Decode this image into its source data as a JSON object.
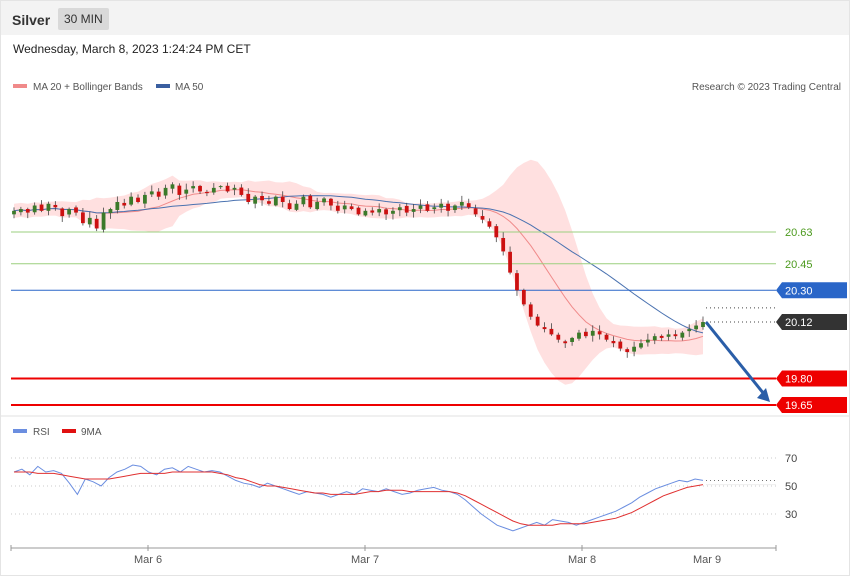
{
  "header": {
    "instrument": "Silver",
    "timeframe": "30 MIN",
    "datetime": "Wednesday, March 8, 2023 1:24:24 PM CET"
  },
  "legend": {
    "ma20_label": "MA 20 + Bollinger Bands",
    "ma50_label": "MA 50",
    "source": "Research © 2023 Trading Central",
    "rsi_label": "RSI",
    "rsi_ma_label": "9MA"
  },
  "colors": {
    "up_candle": "#3b7a2a",
    "down_candle": "#cc1111",
    "ma20": "#f08a8a",
    "bollinger_fill": "#ffd6d6",
    "ma50": "#4a72b0",
    "support": "#ee0000",
    "resistance_minor": "#9bcf7f",
    "pivot": "#2a66c8",
    "last_price_tag": "#333333",
    "rsi": "#6b8ee0",
    "rsi_ma": "#e03030",
    "arrow": "#2a5ea8"
  },
  "chart_data": [
    {
      "type": "candlestick",
      "title": "Silver 30 MIN",
      "x_tick_labels": [
        "Mar 6",
        "Mar 7",
        "Mar 8",
        "Mar 9"
      ],
      "ylim": [
        19.6,
        20.95
      ],
      "levels": [
        {
          "value": 20.63,
          "label": "20.63",
          "kind": "resistance"
        },
        {
          "value": 20.45,
          "label": "20.45",
          "kind": "resistance"
        },
        {
          "value": 20.3,
          "label": "20.30",
          "kind": "pivot"
        },
        {
          "value": 20.12,
          "label": "20.12",
          "kind": "last_price"
        },
        {
          "value": 19.8,
          "label": "19.80",
          "kind": "support"
        },
        {
          "value": 19.65,
          "label": "19.65",
          "kind": "support"
        }
      ],
      "close": [
        20.75,
        20.76,
        20.74,
        20.78,
        20.75,
        20.79,
        20.77,
        20.72,
        20.76,
        20.74,
        20.68,
        20.71,
        20.65,
        20.74,
        20.76,
        20.8,
        20.78,
        20.83,
        20.8,
        20.84,
        20.86,
        20.83,
        20.88,
        20.9,
        20.84,
        20.87,
        20.89,
        20.86,
        20.85,
        20.88,
        20.89,
        20.86,
        20.88,
        20.84,
        20.8,
        20.83,
        20.81,
        20.79,
        20.83,
        20.8,
        20.76,
        20.79,
        20.83,
        20.77,
        20.8,
        20.82,
        20.78,
        20.75,
        20.78,
        20.76,
        20.73,
        20.75,
        20.74,
        20.76,
        20.73,
        20.75,
        20.77,
        20.74,
        20.76,
        20.78,
        20.75,
        20.77,
        20.79,
        20.75,
        20.78,
        20.8,
        20.77,
        20.73,
        20.7,
        20.66,
        20.6,
        20.52,
        20.4,
        20.3,
        20.22,
        20.15,
        20.1,
        20.08,
        20.05,
        20.02,
        20.0,
        20.03,
        20.06,
        20.04,
        20.07,
        20.05,
        20.02,
        20.0,
        19.97,
        19.95,
        19.98,
        20.0,
        20.02,
        20.04,
        20.03,
        20.05,
        20.04,
        20.06,
        20.08,
        20.1,
        20.12
      ],
      "rsi": {
        "ylim": [
          10,
          80
        ],
        "ticks": [
          70,
          50,
          30
        ],
        "values": [
          60,
          62,
          58,
          64,
          60,
          61,
          59,
          52,
          44,
          55,
          53,
          50,
          56,
          60,
          62,
          65,
          64,
          60,
          58,
          62,
          63,
          60,
          64,
          62,
          60,
          61,
          60,
          57,
          54,
          52,
          51,
          49,
          52,
          50,
          48,
          46,
          44,
          46,
          45,
          44,
          42,
          44,
          46,
          44,
          48,
          47,
          46,
          48,
          46,
          44,
          45,
          47,
          48,
          49,
          47,
          46,
          44,
          40,
          35,
          30,
          26,
          22,
          20,
          18,
          20,
          22,
          24,
          22,
          26,
          25,
          24,
          22,
          24,
          26,
          28,
          30,
          32,
          35,
          38,
          42,
          45,
          48,
          50,
          52,
          54,
          53,
          55,
          54
        ],
        "ma_values": [
          60,
          60,
          60,
          59,
          59,
          59,
          58,
          57,
          56,
          55,
          55,
          55,
          55,
          56,
          57,
          58,
          59,
          59,
          59,
          59,
          60,
          60,
          60,
          60,
          60,
          60,
          59,
          58,
          56,
          55,
          53,
          51,
          50,
          50,
          49,
          48,
          47,
          46,
          45,
          45,
          44,
          44,
          44,
          44,
          45,
          46,
          46,
          47,
          47,
          47,
          46,
          46,
          46,
          46,
          46,
          46,
          45,
          43,
          40,
          37,
          34,
          31,
          28,
          25,
          23,
          22,
          22,
          22,
          22,
          23,
          23,
          23,
          23,
          24,
          25,
          26,
          27,
          29,
          31,
          34,
          37,
          40,
          43,
          45,
          47,
          49,
          50,
          51
        ]
      }
    }
  ]
}
